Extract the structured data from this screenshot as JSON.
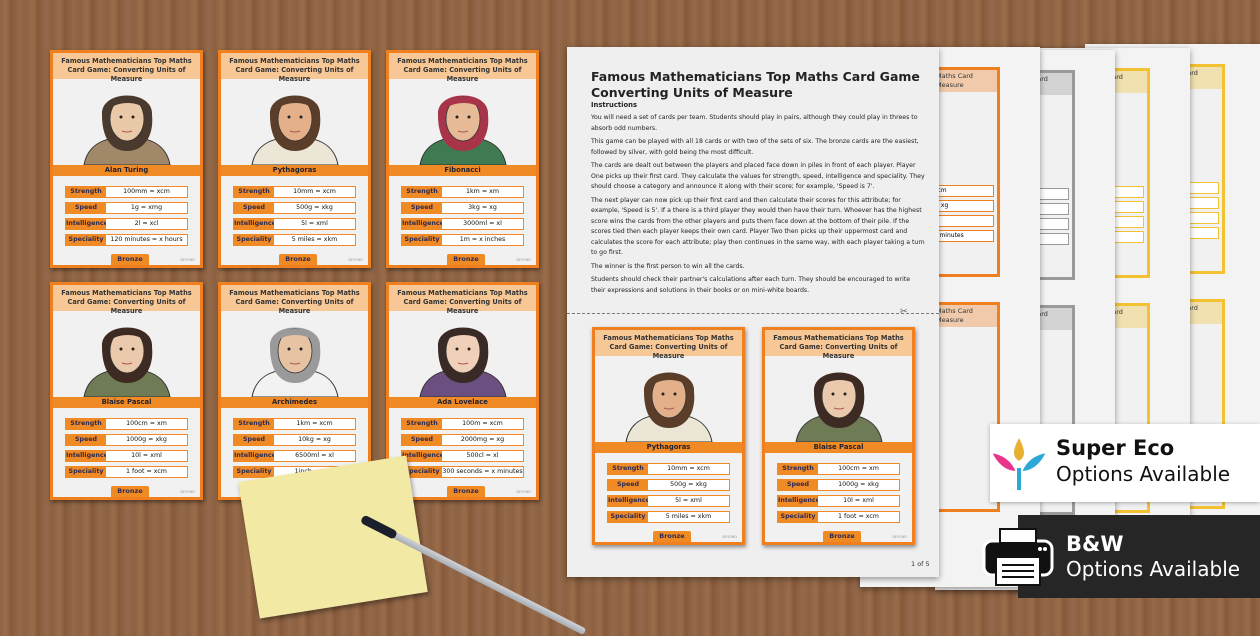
{
  "card_header": "Famous Mathematicians Top Maths Card Game: Converting Units of Measure",
  "stat_labels": [
    "Strength",
    "Speed",
    "Intelligence",
    "Speciality"
  ],
  "level": "Bronze",
  "watermark": "BEYOND",
  "cards": [
    {
      "name": "Alan Turing",
      "values": [
        "100mm = xcm",
        "1g = xmg",
        "2l = xcl",
        "120 minutes = x hours"
      ],
      "hair": "#4a3a2e",
      "skin": "#e9c9a8",
      "cloth": "#a08868"
    },
    {
      "name": "Pythagoras",
      "values": [
        "10mm = xcm",
        "500g = xkg",
        "5l = xml",
        "5 miles = xkm"
      ],
      "hair": "#5a3e2a",
      "skin": "#e3b08a",
      "cloth": "#ece6d6"
    },
    {
      "name": "Fibonacci",
      "values": [
        "1km = xm",
        "3kg = xg",
        "3000ml = xl",
        "1m = x inches"
      ],
      "hair": "#a8344a",
      "skin": "#e7bb98",
      "cloth": "#3f7a52"
    },
    {
      "name": "Blaise Pascal",
      "values": [
        "100cm = xm",
        "1000g = xkg",
        "10l = xml",
        "1 foot = xcm"
      ],
      "hair": "#3d2a22",
      "skin": "#ebc9ad",
      "cloth": "#6e7b55"
    },
    {
      "name": "Archimedes",
      "values": [
        "1km = xcm",
        "10kg = xg",
        "6500ml = xl",
        "1inch = xcm"
      ],
      "hair": "#9a9a9a",
      "skin": "#e6c3a3",
      "cloth": "#f2f2f2"
    },
    {
      "name": "Ada Lovelace",
      "values": [
        "100m = xcm",
        "2000mg = xg",
        "500cl = xl",
        "300 seconds = x minutes"
      ],
      "hair": "#3a2a25",
      "skin": "#f0d0b8",
      "cloth": "#6a4f80"
    }
  ],
  "document": {
    "title": "Famous Mathematicians Top Maths Card Game Converting Units of Measure",
    "subtitle": "Instructions",
    "paragraphs": [
      "You will need a set of cards per team. Students should play in pairs, although they could play in threes to absorb odd numbers.",
      "This game can be played with all 18 cards or with two of the sets of six. The bronze cards are the easiest, followed by silver, with gold being the most difficult.",
      "The cards are dealt out between the players and placed face down in piles in front of each player. Player One picks up their first card.  They calculate the values for strength, speed, intelligence and speciality. They should choose a category and announce it along with their score; for example, 'Speed is 7'.",
      "The next player can now pick up their first card and then calculate their scores for this attribute; for example, 'Speed is 5'. If a there is a third player they would then have their turn.  Whoever has the highest score wins the cards from the other players and puts them face down at the bottom of their pile. If the scores tied then each player keeps their own card. Player Two then picks up their uppermost card and calculates the score for each attribute; play then continues in the same way, with each player taking a turn to go first.",
      "The winner is the first person to win all the cards.",
      "Students should check their partner's calculations after each turn. They should be encouraged to write their expressions and solutions in their books or on mini-white boards."
    ],
    "cards": [
      1,
      3
    ],
    "page_number": "1 of 5"
  },
  "back_pages": {
    "header_fragment": "Maths Card Measure",
    "frame_colors": [
      "#f07f1f",
      "#9a9a9a",
      "#f2c233",
      "#f2c233"
    ],
    "fragments": [
      [
        "xcm",
        "= xg",
        "xl",
        "x minutes"
      ],
      [
        "= xm",
        "xg",
        "xl",
        "xcm"
      ],
      [
        "m",
        "kg",
        "ml",
        "seconds"
      ],
      [
        "m",
        "g",
        "l",
        "inches"
      ]
    ]
  },
  "badges": {
    "eco_title": "Super Eco",
    "eco_sub": "Options Available",
    "bw_title": "B&W",
    "bw_sub": "Options Available"
  },
  "colors": {
    "bronze": "#f08a24",
    "silver": "#9a9a9a",
    "gold": "#f2c233"
  }
}
